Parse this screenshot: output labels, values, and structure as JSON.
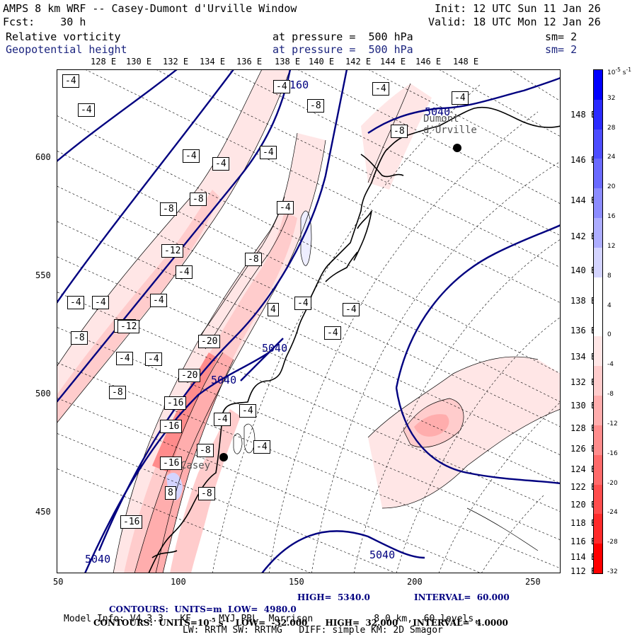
{
  "header": {
    "title": "AMPS 8 km WRF -- Casey-Dumont d'Urville Window",
    "init": "Init: 12 UTC Sun 11 Jan 26",
    "fcst": "Fcst:    30 h",
    "valid": "Valid: 18 UTC Mon 12 Jan 26",
    "field1": "Relative vorticity",
    "field1_level": "at pressure =  500 hPa",
    "field1_sm": "sm= 2",
    "field2": "Geopotential height",
    "field2_level": "at pressure =  500 hPa",
    "field2_sm": "sm= 2"
  },
  "lon_top": [
    "128 E",
    "130 E",
    "132 E",
    "134 E",
    "136 E",
    "138 E",
    "140 E",
    "142 E",
    "144 E",
    "146 E",
    "148 E"
  ],
  "lon_right": [
    "148 E",
    "146 E",
    "144 E",
    "142 E",
    "140 E",
    "138 E",
    "136 E",
    "134 E",
    "132 E",
    "130 E",
    "128 E",
    "126 E",
    "124 E",
    "122 E",
    "120 E",
    "118 E",
    "116 E",
    "114 E",
    "112 E"
  ],
  "y_ticks": [
    "600",
    "550",
    "500",
    "450"
  ],
  "x_ticks": [
    "50",
    "100",
    "150",
    "200",
    "250"
  ],
  "colorbar": {
    "unit": "10^-5 s^-1",
    "labels": [
      "32",
      "28",
      "24",
      "20",
      "16",
      "12",
      "8",
      "4",
      "0",
      "-4",
      "-8",
      "-12",
      "-16",
      "-20",
      "-24",
      "-28",
      "-32"
    ],
    "colors": [
      "#0000ff",
      "#2b2bff",
      "#4d4dff",
      "#6a6aff",
      "#8c8cff",
      "#adadff",
      "#d4d4ff",
      "#ffffff",
      "#ffffff",
      "#ffe6e6",
      "#ffcccc",
      "#ffadad",
      "#ff8c8c",
      "#ff6a6a",
      "#ff4d4d",
      "#ff2b2b",
      "#ff0000"
    ]
  },
  "places": {
    "casey": "Casey",
    "dumont": "Dumont\nd'Urville"
  },
  "height_labels": [
    "5040",
    "5040",
    "5040",
    "5040",
    "5160"
  ],
  "vort_labels": [
    "-4",
    "-4",
    "-4",
    "-8",
    "-4",
    "-4",
    "-8",
    "-4",
    "-8",
    "-4",
    "-4",
    "-8",
    "-12",
    "-8",
    "-4",
    "-20",
    "-20",
    "-16",
    "-16",
    "-16",
    "-8",
    "-4",
    "-4",
    "-4",
    "-12",
    "-16",
    "-8",
    "-4",
    "-8",
    "-4",
    "-4",
    "-4",
    "-12",
    "-8",
    "-4",
    "-4",
    "4",
    "8",
    "-4",
    "-4",
    "-4"
  ],
  "footer": {
    "line1_a": "CONTOURS:  UNITS=m  LOW=  4980.0",
    "line1_b": "HIGH=  5340.0",
    "line1_c": "INTERVAL=  60.000",
    "line2_a": "CONTOURS:  UNITS=10",
    "line2_b": "-5",
    "line2_c": " s",
    "line2_d": "-1",
    "line2_e": "  LOW=  -32.000      HIGH=  32.000     INTERVAL=  4.0000",
    "line3": "Model Info: V4.3.3   KF     MYJ PBL  Morrison           8.0 km,  60 levels,",
    "line4": "LW: RRTM SW: RRTMG   DIFF: simple KM: 2D Smagor"
  }
}
